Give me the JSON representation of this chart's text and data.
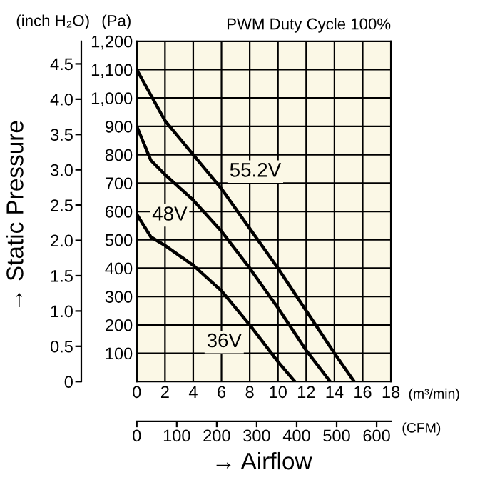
{
  "chart_data": {
    "type": "line",
    "title": "PWM Duty Cycle 100%",
    "xlabel": "(m³/min)",
    "ylabel": "(Pa)",
    "y2label": "(inch H₂O)",
    "x2label": "(CFM)",
    "annotations": [
      "→ Static Pressure",
      "→ Airflow"
    ],
    "series": [
      {
        "name": "55.2V",
        "color": "#000000",
        "x": [
          0,
          1,
          2,
          4,
          6,
          8,
          10,
          12,
          14,
          15.4
        ],
        "values": [
          1100,
          1010,
          920,
          800,
          680,
          540,
          400,
          250,
          100,
          0
        ]
      },
      {
        "name": "48V",
        "color": "#000000",
        "x": [
          0,
          1,
          2,
          4,
          6,
          8,
          10,
          12,
          13.7
        ],
        "values": [
          900,
          780,
          730,
          640,
          530,
          400,
          260,
          110,
          0
        ]
      },
      {
        "name": "36V",
        "color": "#000000",
        "x": [
          0,
          1,
          2,
          4,
          6,
          8,
          10,
          11.2
        ],
        "values": [
          590,
          510,
          480,
          410,
          320,
          200,
          70,
          0
        ]
      }
    ],
    "xlim": [
      0,
      18
    ],
    "xticks": [
      0,
      2,
      4,
      6,
      8,
      10,
      12,
      14,
      16,
      18
    ],
    "ylim": [
      0,
      1200
    ],
    "yticks": [
      {
        "value": 0,
        "label": null
      },
      100,
      200,
      300,
      400,
      500,
      600,
      700,
      800,
      900,
      {
        "value": 1000,
        "label": "1,000"
      },
      {
        "value": 1100,
        "label": "1,100"
      },
      {
        "value": 1200,
        "label": "1,200"
      }
    ],
    "y2lim": [
      0,
      4.82
    ],
    "y2ticks": [
      0,
      0.5,
      {
        "value": 1,
        "label": "1.0"
      },
      1.5,
      {
        "value": 2,
        "label": "2.0"
      },
      2.5,
      {
        "value": 3,
        "label": "3.0"
      },
      3.5,
      {
        "value": 4,
        "label": "4.0"
      },
      4.5
    ],
    "x2lim": [
      0,
      635.7
    ],
    "x2ticks": [
      0,
      100,
      200,
      300,
      400,
      500,
      600
    ],
    "grid": true,
    "legend": false,
    "marker": "none",
    "line_style": "solid"
  }
}
